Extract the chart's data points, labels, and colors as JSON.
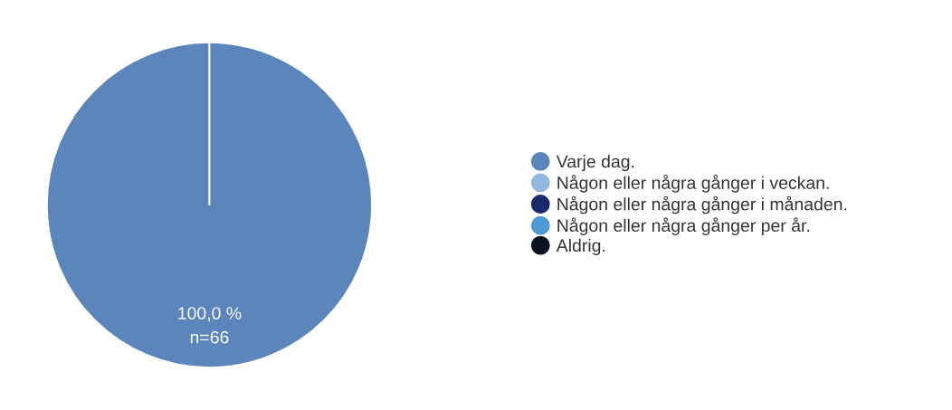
{
  "chart_data": {
    "type": "pie",
    "categories": [
      "Varje dag.",
      "Någon eller några gånger i veckan.",
      "Någon eller några gånger i månaden.",
      "Någon eller några gånger per år.",
      "Aldrig."
    ],
    "values": [
      100,
      0,
      0,
      0,
      0
    ],
    "colors": [
      "#5b85bb",
      "#92b8e0",
      "#1b2a6b",
      "#4f9ad6",
      "#0b1420"
    ],
    "value_labels": [
      "100,0 %\nn=66",
      null,
      null,
      null,
      null
    ],
    "legend": "right"
  }
}
